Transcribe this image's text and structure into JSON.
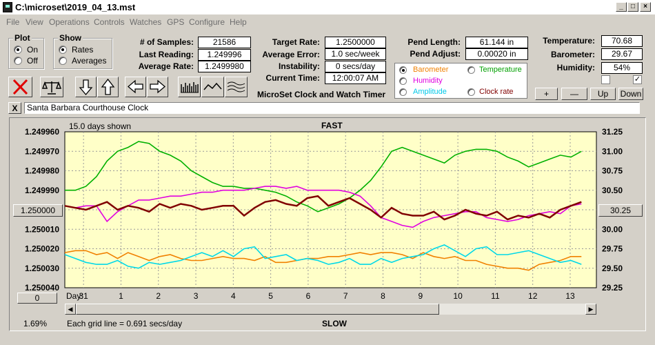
{
  "window": {
    "title": "C:\\microset\\2019_04_13.mst"
  },
  "menu": [
    "File",
    "View",
    "Operations",
    "Controls",
    "Watches",
    "GPS",
    "Configure",
    "Help"
  ],
  "plot_group": {
    "title": "Plot",
    "options": [
      "On",
      "Off"
    ],
    "selected": "On"
  },
  "show_group": {
    "title": "Show",
    "options": [
      "Rates",
      "Averages"
    ],
    "selected": "Rates"
  },
  "stats": {
    "samples_label": "# of Samples:",
    "samples": "21586",
    "last_label": "Last Reading:",
    "last": "1.249996",
    "avg_rate_label": "Average Rate:",
    "avg_rate": "1.2499980"
  },
  "rates": {
    "target_label": "Target Rate:",
    "target": "1.2500000",
    "avg_error_label": "Average Error:",
    "avg_error": "1.0 sec/week",
    "instability_label": "Instability:",
    "instability": "0 secs/day",
    "time_label": "Current Time:",
    "time": "12:00:07 AM"
  },
  "app_name": "MicroSet Clock and Watch Timer",
  "pend": {
    "length_label": "Pend Length:",
    "length": "61.144 in",
    "adjust_label": "Pend Adjust:",
    "adjust": "0.00020 in"
  },
  "sensor_select": {
    "options": [
      {
        "label": "Barometer",
        "color": "#f08000",
        "selected": true
      },
      {
        "label": "Temperature",
        "color": "#00a000",
        "selected": false
      },
      {
        "label": "Humidity",
        "color": "#e000e0",
        "selected": false
      },
      {
        "label": "Amplitude",
        "color": "#00c8e8",
        "selected": false
      },
      {
        "label": "Clock rate",
        "color": "#800000",
        "selected": false
      }
    ]
  },
  "env": {
    "temp_label": "Temperature:",
    "temp": "70.68",
    "baro_label": "Barometer:",
    "baro": "29.67",
    "humid_label": "Humidity:",
    "humid": "54%",
    "check1": false,
    "check2": true
  },
  "adjust_buttons": [
    "+",
    "—",
    "Up",
    "Down"
  ],
  "clock_name": "Santa Barbara Courthouse Clock",
  "clear_label": "X",
  "chart_data": {
    "type": "line",
    "days_shown": "15.0 days shown",
    "top_label": "FAST",
    "bottom_label": "SLOW",
    "left_axis": [
      "1.249960",
      "1.249970",
      "1.249980",
      "1.249990",
      "1.250000",
      "1.250010",
      "1.250020",
      "1.250030",
      "1.250040"
    ],
    "left_ylim": [
      1.24996,
      1.25004
    ],
    "left_center_button": "1.250000",
    "right_axis": [
      "31.25",
      "31.00",
      "30.75",
      "30.50",
      "30.25",
      "30.00",
      "29.75",
      "29.50",
      "29.25"
    ],
    "right_ylim": [
      29.25,
      31.25
    ],
    "right_center_button": "30.25",
    "left_bottom_button": "0",
    "x_axis_label": "Day:",
    "x_labels": [
      "31",
      "1",
      "2",
      "3",
      "4",
      "5",
      "6",
      "7",
      "8",
      "9",
      "10",
      "11",
      "12",
      "13"
    ],
    "x_range": [
      0,
      14.2
    ],
    "x_first_tick": 0.5,
    "grid_text": "Each grid line = 0.691 secs/day",
    "percent": "1.69%",
    "series": [
      {
        "color": "#00b000",
        "y": [
          1.24999,
          1.24999,
          1.249988,
          1.249983,
          1.249975,
          1.24997,
          1.249968,
          1.249965,
          1.249966,
          1.24997,
          1.249972,
          1.249975,
          1.24998,
          1.249983,
          1.249986,
          1.249988,
          1.249988,
          1.249989,
          1.249989,
          1.24999,
          1.249991,
          1.249993,
          1.249996,
          1.249998,
          1.250001,
          1.249999,
          1.249997,
          1.249994,
          1.24999,
          1.249985,
          1.249978,
          1.24997,
          1.249968,
          1.24997,
          1.249972,
          1.249974,
          1.249976,
          1.249972,
          1.24997,
          1.249969,
          1.249969,
          1.24997,
          1.249973,
          1.249975,
          1.249978,
          1.249976,
          1.249974,
          1.249972,
          1.249973,
          1.24997
        ]
      },
      {
        "color": "#e000e0",
        "y": [
          1.249998,
          1.249999,
          1.249998,
          1.249998,
          1.250006,
          1.250001,
          1.249998,
          1.249995,
          1.249995,
          1.249994,
          1.249993,
          1.249993,
          1.249992,
          1.249991,
          1.249991,
          1.24999,
          1.24999,
          1.24999,
          1.249989,
          1.249988,
          1.249988,
          1.249989,
          1.249988,
          1.24999,
          1.24999,
          1.24999,
          1.24999,
          1.249991,
          1.249993,
          1.249998,
          1.250004,
          1.250006,
          1.250008,
          1.250009,
          1.250006,
          1.250004,
          1.250003,
          1.250002,
          1.250001,
          1.250001,
          1.250004,
          1.250005,
          1.250006,
          1.250005,
          1.250003,
          1.250002,
          1.250001,
          1.250002,
          1.249998,
          1.249997
        ]
      },
      {
        "color": "#800000",
        "y": [
          1.249998,
          1.249999,
          1.25,
          1.249998,
          1.249996,
          1.25,
          1.249998,
          1.249999,
          1.250001,
          1.249997,
          1.249999,
          1.249997,
          1.249998,
          1.25,
          1.249999,
          1.249998,
          1.249998,
          1.250003,
          1.249999,
          1.249996,
          1.249995,
          1.249997,
          1.249998,
          1.249994,
          1.249993,
          1.249998,
          1.249996,
          1.249994,
          1.249997,
          1.25,
          1.250004,
          1.249999,
          1.250002,
          1.250003,
          1.250003,
          1.250001,
          1.250005,
          1.250003,
          1.25,
          1.250002,
          1.250003,
          1.250001,
          1.250005,
          1.250003,
          1.250004,
          1.250002,
          1.250004,
          1.25,
          1.249998,
          1.249996
        ]
      },
      {
        "color": "#f08000",
        "y": [
          1.250022,
          1.250021,
          1.250021,
          1.250023,
          1.250022,
          1.250025,
          1.250022,
          1.250024,
          1.250026,
          1.250024,
          1.250023,
          1.250025,
          1.250026,
          1.250026,
          1.250025,
          1.250024,
          1.250025,
          1.250025,
          1.250026,
          1.250024,
          1.250027,
          1.250027,
          1.250026,
          1.250025,
          1.250025,
          1.250024,
          1.250024,
          1.250023,
          1.250022,
          1.250023,
          1.250022,
          1.250022,
          1.250023,
          1.250025,
          1.250022,
          1.250024,
          1.250025,
          1.250024,
          1.250026,
          1.250026,
          1.250028,
          1.250029,
          1.25003,
          1.25003,
          1.250031,
          1.250028,
          1.250027,
          1.250026,
          1.250024,
          1.250024
        ]
      },
      {
        "color": "#00d8e8",
        "y": [
          1.250023,
          1.250025,
          1.250027,
          1.250028,
          1.250028,
          1.250026,
          1.250029,
          1.25003,
          1.250027,
          1.250028,
          1.250027,
          1.250026,
          1.250024,
          1.250022,
          1.250024,
          1.250021,
          1.250024,
          1.25002,
          1.250019,
          1.250025,
          1.250024,
          1.250023,
          1.250026,
          1.250025,
          1.250026,
          1.250028,
          1.250027,
          1.250025,
          1.250028,
          1.250028,
          1.250025,
          1.250027,
          1.250025,
          1.250024,
          1.250023,
          1.25002,
          1.250018,
          1.250021,
          1.250024,
          1.25002,
          1.250019,
          1.250023,
          1.250023,
          1.250022,
          1.250021,
          1.250023,
          1.250025,
          1.250027,
          1.250026,
          1.250028
        ]
      }
    ]
  }
}
